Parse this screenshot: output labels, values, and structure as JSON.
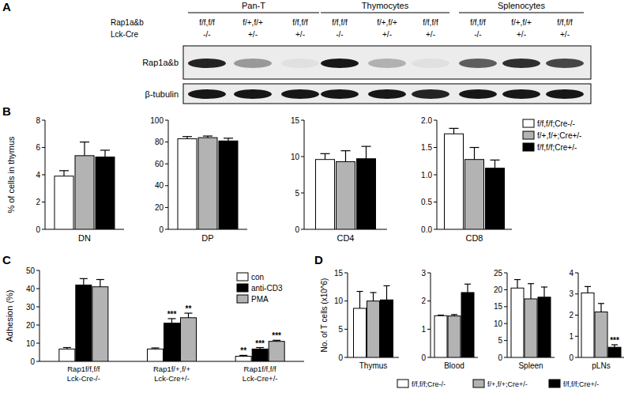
{
  "blot": {
    "panel": "A",
    "groups": [
      "Pan-T",
      "Thymocytes",
      "Splenocytes"
    ],
    "row_labels": [
      "Rap1a&b",
      "Lck-Cre"
    ],
    "genotypes": [
      "f/f,f/f",
      "f/+,f/+",
      "f/f,f/f",
      "f/f,f/f",
      "f/+,f/+",
      "f/f,f/f",
      "f/f,f/f",
      "f/+,f/+",
      "f/f,f/f"
    ],
    "cre": [
      "-/-",
      "+/-",
      "+/-",
      "-/-",
      "+/-",
      "+/-",
      "-/-",
      "+/-",
      "+/-"
    ],
    "bands": [
      {
        "name": "Rap1a&b",
        "intensity": [
          0.85,
          0.35,
          0.05,
          0.9,
          0.25,
          0.05,
          0.6,
          0.8,
          0.7
        ]
      },
      {
        "name": "β-tubulin",
        "intensity": [
          0.9,
          0.9,
          0.9,
          0.9,
          0.9,
          0.85,
          0.9,
          0.9,
          0.9
        ]
      }
    ]
  },
  "chart_data": [
    {
      "type": "bar",
      "panel": "B",
      "ylabel": "% of cells in thymus",
      "legend": "right",
      "series": [
        {
          "name": "f/f,f/f;Cre-/-",
          "color": "#ffffff"
        },
        {
          "name": "f/+,f/+;Cre+/-",
          "color": "#b3b3b3"
        },
        {
          "name": "f/f,f/f;Cre+/-",
          "color": "#000000"
        }
      ],
      "panels": [
        {
          "category": "DN",
          "ylim": [
            0,
            8
          ],
          "yticks": [
            0,
            2,
            4,
            6,
            8
          ],
          "values": [
            3.9,
            5.4,
            5.3
          ],
          "errors": [
            0.4,
            1.0,
            0.5
          ]
        },
        {
          "category": "DP",
          "ylim": [
            0,
            100
          ],
          "yticks": [
            0,
            20,
            40,
            60,
            80,
            100
          ],
          "values": [
            83,
            84,
            81
          ],
          "errors": [
            2,
            1.5,
            2.5
          ]
        },
        {
          "category": "CD4",
          "ylim": [
            0,
            15
          ],
          "yticks": [
            0,
            5,
            10,
            15
          ],
          "values": [
            9.6,
            9.3,
            9.7
          ],
          "errors": [
            0.8,
            1.5,
            1.7
          ]
        },
        {
          "category": "CD8",
          "ylim": [
            0,
            2
          ],
          "yticks": [
            {
              "value": 0,
              "label": "0.0"
            },
            {
              "value": 0.5,
              "label": "0.5"
            },
            {
              "value": 1,
              "label": "1.0"
            },
            {
              "value": 1.5,
              "label": "1.5"
            },
            {
              "value": 2,
              "label": "2.0"
            }
          ],
          "values": [
            1.75,
            1.28,
            1.12
          ],
          "errors": [
            0.1,
            0.22,
            0.15
          ]
        }
      ]
    },
    {
      "type": "bar",
      "panel": "C",
      "ylabel": "Adhesion (%)",
      "legend": "upper right",
      "ylim": [
        0,
        50
      ],
      "yticks": [
        0,
        10,
        20,
        30,
        40,
        50
      ],
      "categories": [
        "Rap1f/f,f/f\nLck-Cre-/-",
        "Rap1f/+,f/+\nLck-Cre+/-",
        "Rap1f/f,f/f\nLck-Cre+/-"
      ],
      "series": [
        {
          "name": "con",
          "color": "#ffffff",
          "values": [
            6.8,
            6.8,
            2.8
          ],
          "errors": [
            0.8,
            0.6,
            0.5
          ],
          "annotations": [
            null,
            null,
            "**"
          ]
        },
        {
          "name": "anti-CD3",
          "color": "#000000",
          "values": [
            42,
            21,
            6.8
          ],
          "errors": [
            3.5,
            2.5,
            0.8
          ],
          "annotations": [
            null,
            "***",
            "***"
          ]
        },
        {
          "name": "PMA",
          "color": "#b3b3b3",
          "values": [
            41,
            24,
            11
          ],
          "errors": [
            4,
            2.5,
            0.6
          ],
          "annotations": [
            null,
            "**",
            "***"
          ]
        }
      ]
    },
    {
      "type": "bar",
      "panel": "D",
      "ylabel": "No. of T cells (x10^6)",
      "legend": "bottom",
      "series": [
        {
          "name": "f/f,f/f;Cre-/-",
          "color": "#ffffff"
        },
        {
          "name": "f/+,f/+;Cre+/-",
          "color": "#b3b3b3"
        },
        {
          "name": "f/f,f/f;Cre+/-",
          "color": "#000000"
        }
      ],
      "panels": [
        {
          "category": "Thymus",
          "ylim": [
            0,
            15
          ],
          "yticks": [
            0,
            5,
            10,
            15
          ],
          "values": [
            8.7,
            10,
            10.2
          ],
          "errors": [
            3,
            1.5,
            2.5
          ]
        },
        {
          "category": "Blood",
          "ylim": [
            0,
            3
          ],
          "yticks": [
            0,
            1,
            2,
            3
          ],
          "values": [
            1.48,
            1.47,
            2.3
          ],
          "errors": [
            0.02,
            0.05,
            0.3
          ]
        },
        {
          "category": "Spleen",
          "ylim": [
            0,
            25
          ],
          "yticks": [
            0,
            5,
            10,
            15,
            20,
            25
          ],
          "values": [
            20.5,
            17.3,
            17.8
          ],
          "errors": [
            2.5,
            4.5,
            3
          ]
        },
        {
          "category": "pLNs",
          "ylim": [
            0,
            4
          ],
          "yticks": [
            0,
            1,
            2,
            3,
            4
          ],
          "values": [
            3.05,
            2.15,
            0.48
          ],
          "errors": [
            0.3,
            0.4,
            0.12
          ],
          "annotations": [
            null,
            null,
            "***"
          ]
        }
      ]
    }
  ]
}
